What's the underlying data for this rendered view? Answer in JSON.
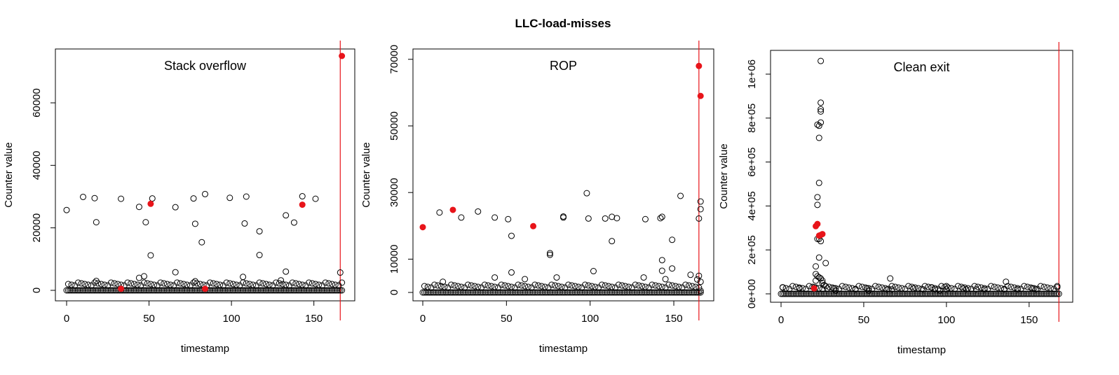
{
  "figure_title": "LLC-load-misses",
  "chart_data": [
    {
      "type": "scatter",
      "title": "Stack overflow",
      "xlabel": "timestamp",
      "ylabel": "Counter value",
      "xlim": [
        0,
        168
      ],
      "ylim": [
        0,
        75000
      ],
      "x_ticks": [
        0,
        50,
        100,
        150
      ],
      "x_tick_labels": [
        "0",
        "50",
        "100",
        "150"
      ],
      "y_ticks": [
        0,
        20000,
        40000,
        60000
      ],
      "y_tick_labels": [
        "0",
        "20000",
        "40000",
        "60000"
      ],
      "vertical_marker_x": 166,
      "baseline": {
        "from": 0,
        "to": 167,
        "y": 0
      },
      "points": [
        {
          "x": 0,
          "y": 25700
        },
        {
          "x": 10,
          "y": 29900
        },
        {
          "x": 17,
          "y": 29500
        },
        {
          "x": 18,
          "y": 21800
        },
        {
          "x": 33,
          "y": 29300
        },
        {
          "x": 44,
          "y": 26700
        },
        {
          "x": 48,
          "y": 21800
        },
        {
          "x": 51,
          "y": 11200
        },
        {
          "x": 52,
          "y": 29400
        },
        {
          "x": 66,
          "y": 26600
        },
        {
          "x": 77,
          "y": 29400
        },
        {
          "x": 78,
          "y": 21300
        },
        {
          "x": 82,
          "y": 15400
        },
        {
          "x": 84,
          "y": 30800
        },
        {
          "x": 99,
          "y": 29600
        },
        {
          "x": 108,
          "y": 21400
        },
        {
          "x": 109,
          "y": 30000
        },
        {
          "x": 117,
          "y": 18900
        },
        {
          "x": 117,
          "y": 11300
        },
        {
          "x": 133,
          "y": 24000
        },
        {
          "x": 138,
          "y": 21700
        },
        {
          "x": 143,
          "y": 30100
        },
        {
          "x": 151,
          "y": 29300
        },
        {
          "x": 133,
          "y": 6000
        },
        {
          "x": 66,
          "y": 5800
        },
        {
          "x": 44,
          "y": 4000
        },
        {
          "x": 47,
          "y": 4500
        },
        {
          "x": 107,
          "y": 4300
        },
        {
          "x": 166,
          "y": 5700
        },
        {
          "x": 18,
          "y": 3000
        },
        {
          "x": 78,
          "y": 2900
        },
        {
          "x": 130,
          "y": 3200
        }
      ],
      "highlighted_points": [
        {
          "x": 33,
          "y": 500
        },
        {
          "x": 51,
          "y": 27700
        },
        {
          "x": 84,
          "y": 500
        },
        {
          "x": 143,
          "y": 27400
        },
        {
          "x": 167,
          "y": 75000
        }
      ]
    },
    {
      "type": "scatter",
      "title": "ROP",
      "xlabel": "timestamp",
      "ylabel": "Counter value",
      "xlim": [
        0,
        168
      ],
      "ylim": [
        0,
        71000
      ],
      "x_ticks": [
        0,
        50,
        100,
        150
      ],
      "x_tick_labels": [
        "0",
        "50",
        "100",
        "150"
      ],
      "y_ticks": [
        0,
        10000,
        30000,
        50000,
        70000
      ],
      "y_tick_labels": [
        "0",
        "10000",
        "30000",
        "50000",
        "70000"
      ],
      "vertical_marker_x": 165,
      "baseline": {
        "from": 0,
        "to": 166,
        "y": 0
      },
      "points": [
        {
          "x": 10,
          "y": 24000
        },
        {
          "x": 23,
          "y": 22500
        },
        {
          "x": 33,
          "y": 24300
        },
        {
          "x": 43,
          "y": 22500
        },
        {
          "x": 51,
          "y": 22000
        },
        {
          "x": 53,
          "y": 17000
        },
        {
          "x": 53,
          "y": 6000
        },
        {
          "x": 76,
          "y": 11800
        },
        {
          "x": 76,
          "y": 11300
        },
        {
          "x": 84,
          "y": 22800
        },
        {
          "x": 84,
          "y": 22500
        },
        {
          "x": 98,
          "y": 29800
        },
        {
          "x": 99,
          "y": 22200
        },
        {
          "x": 102,
          "y": 6400
        },
        {
          "x": 109,
          "y": 22200
        },
        {
          "x": 113,
          "y": 22700
        },
        {
          "x": 113,
          "y": 15400
        },
        {
          "x": 116,
          "y": 22300
        },
        {
          "x": 133,
          "y": 22000
        },
        {
          "x": 142,
          "y": 22300
        },
        {
          "x": 143,
          "y": 22700
        },
        {
          "x": 143,
          "y": 9700
        },
        {
          "x": 143,
          "y": 6500
        },
        {
          "x": 149,
          "y": 15800
        },
        {
          "x": 149,
          "y": 7200
        },
        {
          "x": 154,
          "y": 29000
        },
        {
          "x": 166,
          "y": 27300
        },
        {
          "x": 166,
          "y": 25000
        },
        {
          "x": 165,
          "y": 22200
        },
        {
          "x": 43,
          "y": 4500
        },
        {
          "x": 61,
          "y": 4000
        },
        {
          "x": 80,
          "y": 4500
        },
        {
          "x": 132,
          "y": 4500
        },
        {
          "x": 145,
          "y": 4000
        },
        {
          "x": 160,
          "y": 5300
        },
        {
          "x": 165,
          "y": 5000
        },
        {
          "x": 164,
          "y": 3900
        },
        {
          "x": 166,
          "y": 3200
        },
        {
          "x": 166,
          "y": 500
        },
        {
          "x": 12,
          "y": 3200
        }
      ],
      "highlighted_points": [
        {
          "x": 0,
          "y": 19600
        },
        {
          "x": 18,
          "y": 24800
        },
        {
          "x": 66,
          "y": 19900
        },
        {
          "x": 165,
          "y": 68000
        },
        {
          "x": 166,
          "y": 59000
        }
      ]
    },
    {
      "type": "scatter",
      "title": "Clean exit",
      "xlabel": "timestamp",
      "ylabel": "Counter value",
      "xlim": [
        0,
        170
      ],
      "ylim": [
        0,
        1070000
      ],
      "x_ticks": [
        0,
        50,
        100,
        150
      ],
      "x_tick_labels": [
        "0",
        "50",
        "100",
        "150"
      ],
      "y_ticks": [
        0,
        200000,
        400000,
        600000,
        800000,
        1000000
      ],
      "y_tick_labels": [
        "0e+00",
        "2e+05",
        "4e+05",
        "6e+05",
        "8e+05",
        "1e+06"
      ],
      "vertical_marker_x": 168,
      "baseline": {
        "from": 0,
        "to": 168,
        "y": 0
      },
      "points": [
        {
          "x": 1,
          "y": 30000
        },
        {
          "x": 11,
          "y": 25000
        },
        {
          "x": 21,
          "y": 125000
        },
        {
          "x": 21,
          "y": 90000
        },
        {
          "x": 22,
          "y": 440000
        },
        {
          "x": 22,
          "y": 405000
        },
        {
          "x": 22,
          "y": 250000
        },
        {
          "x": 22,
          "y": 770000
        },
        {
          "x": 23,
          "y": 505000
        },
        {
          "x": 23,
          "y": 765000
        },
        {
          "x": 23,
          "y": 710000
        },
        {
          "x": 23,
          "y": 250000
        },
        {
          "x": 23,
          "y": 165000
        },
        {
          "x": 24,
          "y": 1060000
        },
        {
          "x": 24,
          "y": 870000
        },
        {
          "x": 24,
          "y": 840000
        },
        {
          "x": 24,
          "y": 830000
        },
        {
          "x": 24,
          "y": 780000
        },
        {
          "x": 24,
          "y": 240000
        },
        {
          "x": 25,
          "y": 60000
        },
        {
          "x": 26,
          "y": 40000
        },
        {
          "x": 27,
          "y": 140000
        },
        {
          "x": 28,
          "y": 25000
        },
        {
          "x": 32,
          "y": 25000
        },
        {
          "x": 33,
          "y": 15000
        },
        {
          "x": 45,
          "y": 20000
        },
        {
          "x": 52,
          "y": 25000
        },
        {
          "x": 53,
          "y": 15000
        },
        {
          "x": 64,
          "y": 20000
        },
        {
          "x": 66,
          "y": 70000
        },
        {
          "x": 67,
          "y": 20000
        },
        {
          "x": 80,
          "y": 25000
        },
        {
          "x": 86,
          "y": 20000
        },
        {
          "x": 91,
          "y": 30000
        },
        {
          "x": 93,
          "y": 20000
        },
        {
          "x": 96,
          "y": 15000
        },
        {
          "x": 100,
          "y": 35000
        },
        {
          "x": 100,
          "y": 20000
        },
        {
          "x": 110,
          "y": 25000
        },
        {
          "x": 112,
          "y": 20000
        },
        {
          "x": 118,
          "y": 20000
        },
        {
          "x": 123,
          "y": 20000
        },
        {
          "x": 135,
          "y": 20000
        },
        {
          "x": 136,
          "y": 55000
        },
        {
          "x": 143,
          "y": 20000
        },
        {
          "x": 152,
          "y": 25000
        },
        {
          "x": 154,
          "y": 20000
        },
        {
          "x": 167,
          "y": 30000
        },
        {
          "x": 20,
          "y": 30000
        },
        {
          "x": 22,
          "y": 80000
        },
        {
          "x": 23,
          "y": 75000
        },
        {
          "x": 24,
          "y": 70000
        },
        {
          "x": 25,
          "y": 50000
        },
        {
          "x": 21,
          "y": 60000
        }
      ],
      "highlighted_points": [
        {
          "x": 20,
          "y": 25000
        },
        {
          "x": 21,
          "y": 308000
        },
        {
          "x": 22,
          "y": 318000
        },
        {
          "x": 23,
          "y": 265000
        },
        {
          "x": 24,
          "y": 268000
        },
        {
          "x": 25,
          "y": 272000
        }
      ]
    }
  ]
}
